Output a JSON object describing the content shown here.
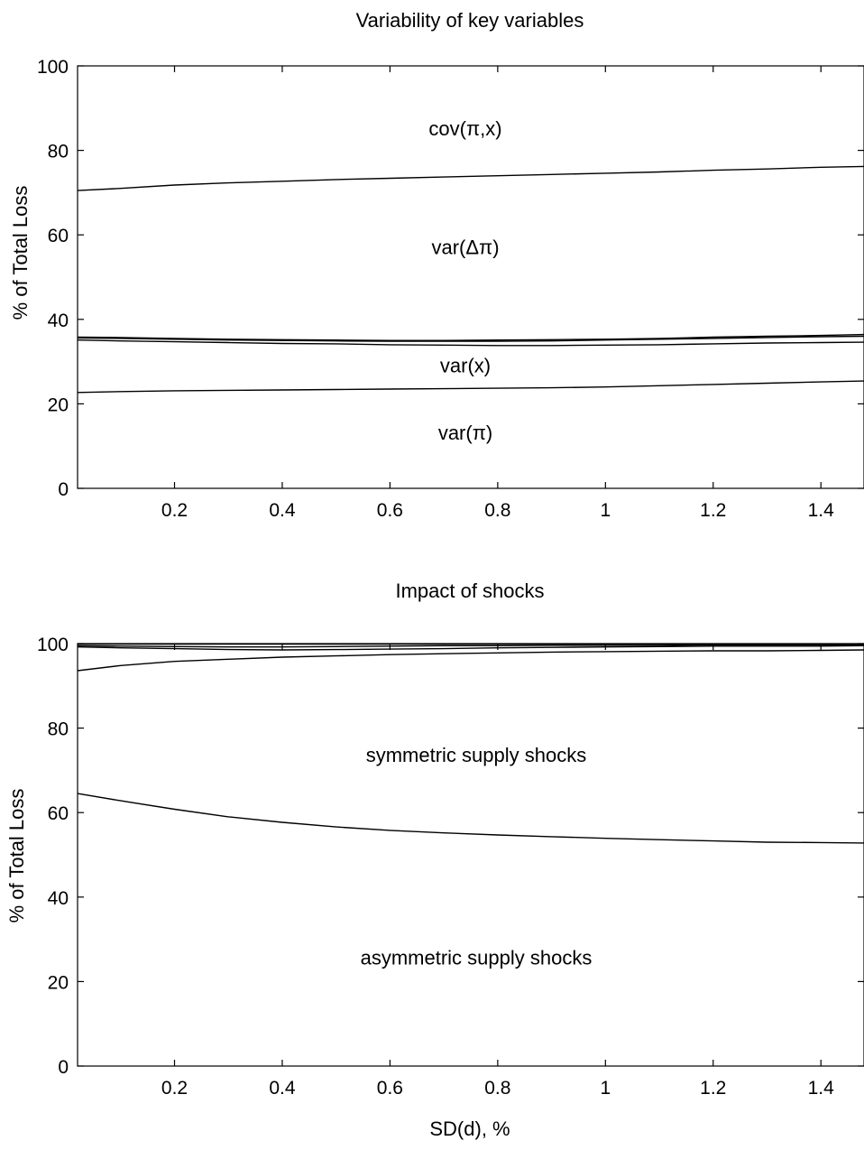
{
  "chart_data": [
    {
      "type": "area",
      "title": "Variability of key variables",
      "xlabel": "",
      "ylabel": "% of Total Loss",
      "xlim": [
        0.02,
        1.48
      ],
      "ylim": [
        0,
        100
      ],
      "x_ticks": [
        0.2,
        0.4,
        0.6,
        0.8,
        1,
        1.2,
        1.4
      ],
      "x_tick_labels": [
        "0.2",
        "0.4",
        "0.6",
        "0.8",
        "1",
        "1.2",
        "1.4"
      ],
      "y_ticks": [
        0,
        20,
        40,
        60,
        80,
        100
      ],
      "y_tick_labels": [
        "0",
        "20",
        "40",
        "60",
        "80",
        "100"
      ],
      "x": [
        0.02,
        0.1,
        0.2,
        0.3,
        0.4,
        0.5,
        0.6,
        0.7,
        0.8,
        0.9,
        1.0,
        1.1,
        1.2,
        1.3,
        1.4,
        1.48
      ],
      "series": [
        {
          "values": [
            22.7,
            22.9,
            23.1,
            23.2,
            23.3,
            23.4,
            23.5,
            23.6,
            23.7,
            23.8,
            24.0,
            24.3,
            24.6,
            24.9,
            25.2,
            25.4
          ]
        },
        {
          "values": [
            35.1,
            34.9,
            34.7,
            34.5,
            34.3,
            34.2,
            34.0,
            33.9,
            33.8,
            33.8,
            33.9,
            34.0,
            34.2,
            34.4,
            34.5,
            34.6
          ]
        },
        {
          "values": [
            35.6,
            35.5,
            35.3,
            35.1,
            35.0,
            34.9,
            34.8,
            34.8,
            34.8,
            34.9,
            35.1,
            35.3,
            35.5,
            35.7,
            35.9,
            36.0
          ]
        },
        {
          "values": [
            35.8,
            35.7,
            35.5,
            35.3,
            35.2,
            35.1,
            35.0,
            35.0,
            35.1,
            35.2,
            35.3,
            35.5,
            35.8,
            36.0,
            36.2,
            36.4
          ]
        },
        {
          "values": [
            70.5,
            71.0,
            71.8,
            72.3,
            72.7,
            73.1,
            73.4,
            73.7,
            74.0,
            74.3,
            74.6,
            74.9,
            75.3,
            75.6,
            76.0,
            76.2
          ]
        }
      ],
      "annotations": [
        {
          "text": "cov(π,x)",
          "x": 0.74,
          "y": 83.5
        },
        {
          "text": "var(Δπ)",
          "x": 0.74,
          "y": 55.5
        },
        {
          "text": "var(x)",
          "x": 0.74,
          "y": 27.5
        },
        {
          "text": "var(π)",
          "x": 0.74,
          "y": 11.5
        }
      ]
    },
    {
      "type": "area",
      "title": "Impact of shocks",
      "xlabel": "SD(d), %",
      "ylabel": "% of Total Loss",
      "xlim": [
        0.02,
        1.48
      ],
      "ylim": [
        0,
        100
      ],
      "x_ticks": [
        0.2,
        0.4,
        0.6,
        0.8,
        1,
        1.2,
        1.4
      ],
      "x_tick_labels": [
        "0.2",
        "0.4",
        "0.6",
        "0.8",
        "1",
        "1.2",
        "1.4"
      ],
      "y_ticks": [
        0,
        20,
        40,
        60,
        80,
        100
      ],
      "y_tick_labels": [
        "0",
        "20",
        "40",
        "60",
        "80",
        "100"
      ],
      "x": [
        0.02,
        0.1,
        0.2,
        0.3,
        0.4,
        0.5,
        0.6,
        0.7,
        0.8,
        0.9,
        1.0,
        1.1,
        1.2,
        1.3,
        1.4,
        1.48
      ],
      "series": [
        {
          "values": [
            64.5,
            62.8,
            60.8,
            59.0,
            57.7,
            56.6,
            55.8,
            55.2,
            54.7,
            54.3,
            53.9,
            53.6,
            53.3,
            53.0,
            52.9,
            52.8
          ]
        },
        {
          "values": [
            93.6,
            94.8,
            95.8,
            96.3,
            96.8,
            97.1,
            97.4,
            97.6,
            97.8,
            98.0,
            98.1,
            98.2,
            98.3,
            98.3,
            98.4,
            98.5
          ]
        },
        {
          "values": [
            99.2,
            99.0,
            98.8,
            98.6,
            98.5,
            98.6,
            98.7,
            98.8,
            99.0,
            99.1,
            99.2,
            99.3,
            99.4,
            99.4,
            99.4,
            99.5
          ]
        },
        {
          "values": [
            99.5,
            99.4,
            99.3,
            99.2,
            99.2,
            99.3,
            99.4,
            99.5,
            99.5,
            99.6,
            99.6,
            99.6,
            99.7,
            99.7,
            99.7,
            99.7
          ]
        },
        {
          "values": [
            99.9,
            99.9,
            99.9,
            99.9,
            99.9,
            99.9,
            99.9,
            99.9,
            99.9,
            99.9,
            99.9,
            99.9,
            99.9,
            99.9,
            99.9,
            99.9
          ]
        }
      ],
      "annotations": [
        {
          "text": "symmetric supply shocks",
          "x": 0.76,
          "y": 72
        },
        {
          "text": "asymmetric supply shocks",
          "x": 0.76,
          "y": 24
        }
      ]
    }
  ]
}
